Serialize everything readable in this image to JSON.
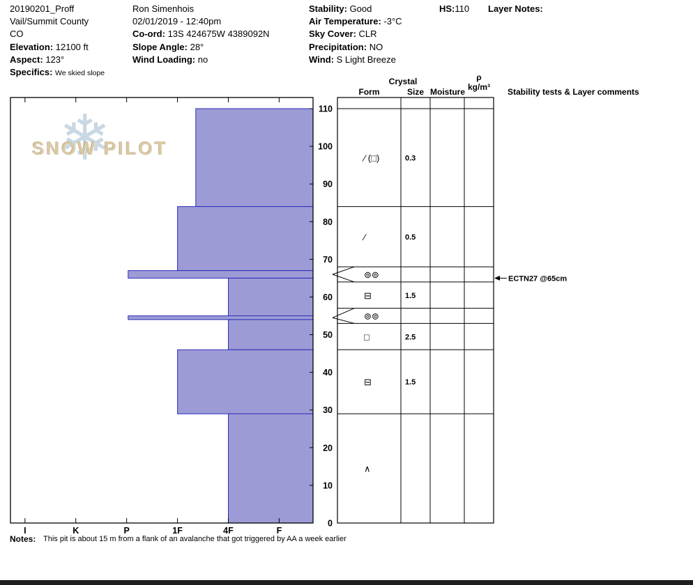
{
  "header": {
    "pit_name": "20190201_Proff",
    "region": "Vail/Summit County",
    "state": "CO",
    "elevation": {
      "label": "Elevation:",
      "value": "12100 ft"
    },
    "aspect": {
      "label": "Aspect:",
      "value": "123°"
    },
    "specifics": {
      "label": "Specifics:",
      "value": "We skied slope"
    },
    "observer": "Ron Simenhois",
    "datetime": "02/01/2019 - 12:40pm",
    "coord": {
      "label": "Co-ord:",
      "value": "13S 424675W 4389092N"
    },
    "slope_angle": {
      "label": "Slope Angle:",
      "value": "28°"
    },
    "wind_loading": {
      "label": "Wind Loading:",
      "value": "no"
    },
    "stability": {
      "label": "Stability:",
      "value": "Good"
    },
    "air_temp": {
      "label": "Air Temperature:",
      "value": "-3°C"
    },
    "sky_cover": {
      "label": "Sky Cover:",
      "value": "CLR"
    },
    "precipitation": {
      "label": "Precipitation:",
      "value": "NO"
    },
    "wind": {
      "label": "Wind:",
      "value": "S Light Breeze"
    },
    "hs": {
      "label": "HS:",
      "value": "110"
    },
    "layer_notes": {
      "label": "Layer Notes:"
    }
  },
  "watermark": {
    "brand": "SNOW PILOT",
    "snowflake": "❄"
  },
  "grid_headers": {
    "crystal": "Crystal",
    "form": "Form",
    "size": "Size",
    "moisture": "Moisture",
    "rho": "ρ",
    "rho_units": "kg/m³",
    "comments": "Stability tests & Layer comments"
  },
  "notes": {
    "label": "Notes:",
    "text": "This pit is about 15 m from a flank of an avalanche that got triggered by AA a week earlier"
  },
  "chart_data": {
    "type": "snow-hardness-profile",
    "title": "Snow pit hardness profile with grain form/size grid",
    "depth_cm": {
      "max": 110,
      "min": 0,
      "ticks": [
        110,
        100,
        90,
        80,
        70,
        60,
        50,
        40,
        30,
        20,
        10,
        0
      ]
    },
    "hardness_scale": {
      "labels": [
        "I",
        "K",
        "P",
        "1F",
        "4F",
        "F"
      ],
      "values": [
        6,
        5,
        4,
        3,
        2,
        1
      ]
    },
    "total_depth_hs_cm": 110,
    "layers": [
      {
        "top_cm": 110,
        "bottom_cm": 84,
        "hardness": "1F-",
        "hardness_num": 2.64
      },
      {
        "top_cm": 84,
        "bottom_cm": 67,
        "hardness": "1F",
        "hardness_num": 3.0
      },
      {
        "top_cm": 67,
        "bottom_cm": 65,
        "hardness": "P",
        "hardness_num": 3.97
      },
      {
        "top_cm": 65,
        "bottom_cm": 55,
        "hardness": "4F",
        "hardness_num": 2.0
      },
      {
        "top_cm": 55,
        "bottom_cm": 54,
        "hardness": "P",
        "hardness_num": 3.97
      },
      {
        "top_cm": 54,
        "bottom_cm": 46,
        "hardness": "4F",
        "hardness_num": 2.0
      },
      {
        "top_cm": 46,
        "bottom_cm": 29,
        "hardness": "1F",
        "hardness_num": 3.0
      },
      {
        "top_cm": 29,
        "bottom_cm": 0,
        "hardness": "4F",
        "hardness_num": 2.0
      }
    ],
    "grain_rows": [
      {
        "top_cm": 110,
        "bottom_cm": 84,
        "form": "∕ (□)",
        "size": "0.3"
      },
      {
        "top_cm": 84,
        "bottom_cm": 68,
        "form": "∕",
        "size": "0.5"
      },
      {
        "top_cm": 68,
        "bottom_cm": 64,
        "form": "⊚⊚",
        "size": "",
        "thin_layer_tip_cm": 66
      },
      {
        "top_cm": 64,
        "bottom_cm": 57,
        "form": "⊟",
        "size": "1.5"
      },
      {
        "top_cm": 57,
        "bottom_cm": 53,
        "form": "⊚⊚",
        "size": "",
        "thin_layer_tip_cm": 54.5
      },
      {
        "top_cm": 53,
        "bottom_cm": 46,
        "form": "□",
        "size": "2.5"
      },
      {
        "top_cm": 46,
        "bottom_cm": 29,
        "form": "⊟",
        "size": "1.5"
      },
      {
        "top_cm": 29,
        "bottom_cm": 0,
        "form": "∧",
        "size": ""
      }
    ],
    "stability_tests": [
      {
        "depth_cm": 65,
        "text": "ECTN27 @65cm"
      }
    ],
    "colors": {
      "bar_fill": "#9c9bd5",
      "bar_stroke": "#2d2cbb",
      "line": "#000000"
    }
  }
}
